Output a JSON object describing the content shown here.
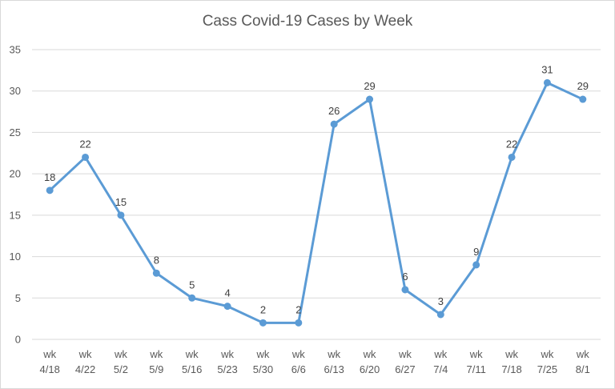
{
  "chart_data": {
    "type": "line",
    "title": "Cass Covid-19 Cases by Week",
    "xlabel": "",
    "ylabel": "",
    "categories": [
      [
        "wk",
        "4/18"
      ],
      [
        "wk",
        "4/22"
      ],
      [
        "wk",
        "5/2"
      ],
      [
        "wk",
        "5/9"
      ],
      [
        "wk",
        "5/16"
      ],
      [
        "wk",
        "5/23"
      ],
      [
        "wk",
        "5/30"
      ],
      [
        "wk",
        "6/6"
      ],
      [
        "wk",
        "6/13"
      ],
      [
        "wk",
        "6/20"
      ],
      [
        "wk",
        "6/27"
      ],
      [
        "wk",
        "7/4"
      ],
      [
        "wk",
        "7/11"
      ],
      [
        "wk",
        "7/18"
      ],
      [
        "wk",
        "7/25"
      ],
      [
        "wk",
        "8/1"
      ]
    ],
    "series": [
      {
        "values": [
          18,
          22,
          15,
          8,
          5,
          4,
          2,
          2,
          26,
          29,
          6,
          3,
          9,
          22,
          31,
          29
        ]
      }
    ],
    "ylim": [
      0,
      35
    ],
    "yticks": [
      0,
      5,
      10,
      15,
      20,
      25,
      30,
      35
    ],
    "grid": true,
    "legend": "none",
    "colors": {
      "line": "#5b9bd5",
      "grid": "#d9d9d9",
      "text": "#595959"
    }
  }
}
